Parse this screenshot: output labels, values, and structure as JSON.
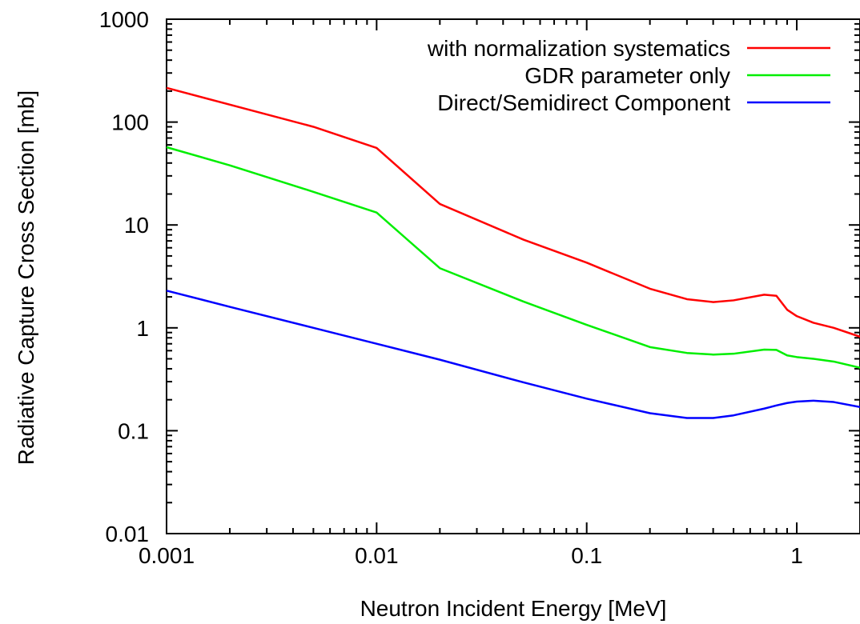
{
  "chart_data": {
    "type": "line",
    "title": "",
    "xlabel": "Neutron Incident Energy [MeV]",
    "ylabel": "Radiative Capture Cross Section [mb]",
    "xscale": "log",
    "yscale": "log",
    "xlim": [
      0.001,
      2
    ],
    "ylim": [
      0.01,
      1000
    ],
    "xticks": [
      {
        "value": 0.001,
        "label": "0.001"
      },
      {
        "value": 0.01,
        "label": "0.01"
      },
      {
        "value": 0.1,
        "label": "0.1"
      },
      {
        "value": 1,
        "label": "1"
      }
    ],
    "yticks": [
      {
        "value": 0.01,
        "label": "0.01"
      },
      {
        "value": 0.1,
        "label": "0.1"
      },
      {
        "value": 1,
        "label": "1"
      },
      {
        "value": 10,
        "label": "10"
      },
      {
        "value": 100,
        "label": "100"
      },
      {
        "value": 1000,
        "label": "1000"
      }
    ],
    "grid": false,
    "legend_position": "top-right",
    "series": [
      {
        "name": "with normalization systematics",
        "color": "#ff0000",
        "x": [
          0.001,
          0.005,
          0.01,
          0.02,
          0.05,
          0.1,
          0.2,
          0.3,
          0.4,
          0.5,
          0.7,
          0.8,
          0.9,
          1.0,
          1.2,
          1.5,
          2.0
        ],
        "y": [
          215,
          90,
          56,
          16,
          7.2,
          4.3,
          2.4,
          1.9,
          1.78,
          1.85,
          2.1,
          2.05,
          1.5,
          1.3,
          1.12,
          1.0,
          0.82
        ]
      },
      {
        "name": "GDR parameter only",
        "color": "#00ee00",
        "x": [
          0.001,
          0.002,
          0.005,
          0.01,
          0.02,
          0.05,
          0.1,
          0.2,
          0.3,
          0.4,
          0.5,
          0.7,
          0.8,
          0.9,
          1.0,
          1.2,
          1.5,
          2.0
        ],
        "y": [
          57,
          38,
          21,
          13.2,
          3.8,
          1.8,
          1.07,
          0.65,
          0.57,
          0.55,
          0.56,
          0.615,
          0.61,
          0.54,
          0.52,
          0.5,
          0.47,
          0.41
        ]
      },
      {
        "name": "Direct/Semidirect Component",
        "color": "#0000ff",
        "x": [
          0.001,
          0.002,
          0.005,
          0.01,
          0.02,
          0.05,
          0.1,
          0.2,
          0.3,
          0.4,
          0.5,
          0.7,
          0.8,
          0.9,
          1.0,
          1.2,
          1.5,
          2.0
        ],
        "y": [
          2.3,
          1.6,
          1.0,
          0.7,
          0.49,
          0.295,
          0.205,
          0.148,
          0.133,
          0.133,
          0.141,
          0.164,
          0.176,
          0.186,
          0.192,
          0.196,
          0.19,
          0.17
        ]
      }
    ]
  }
}
